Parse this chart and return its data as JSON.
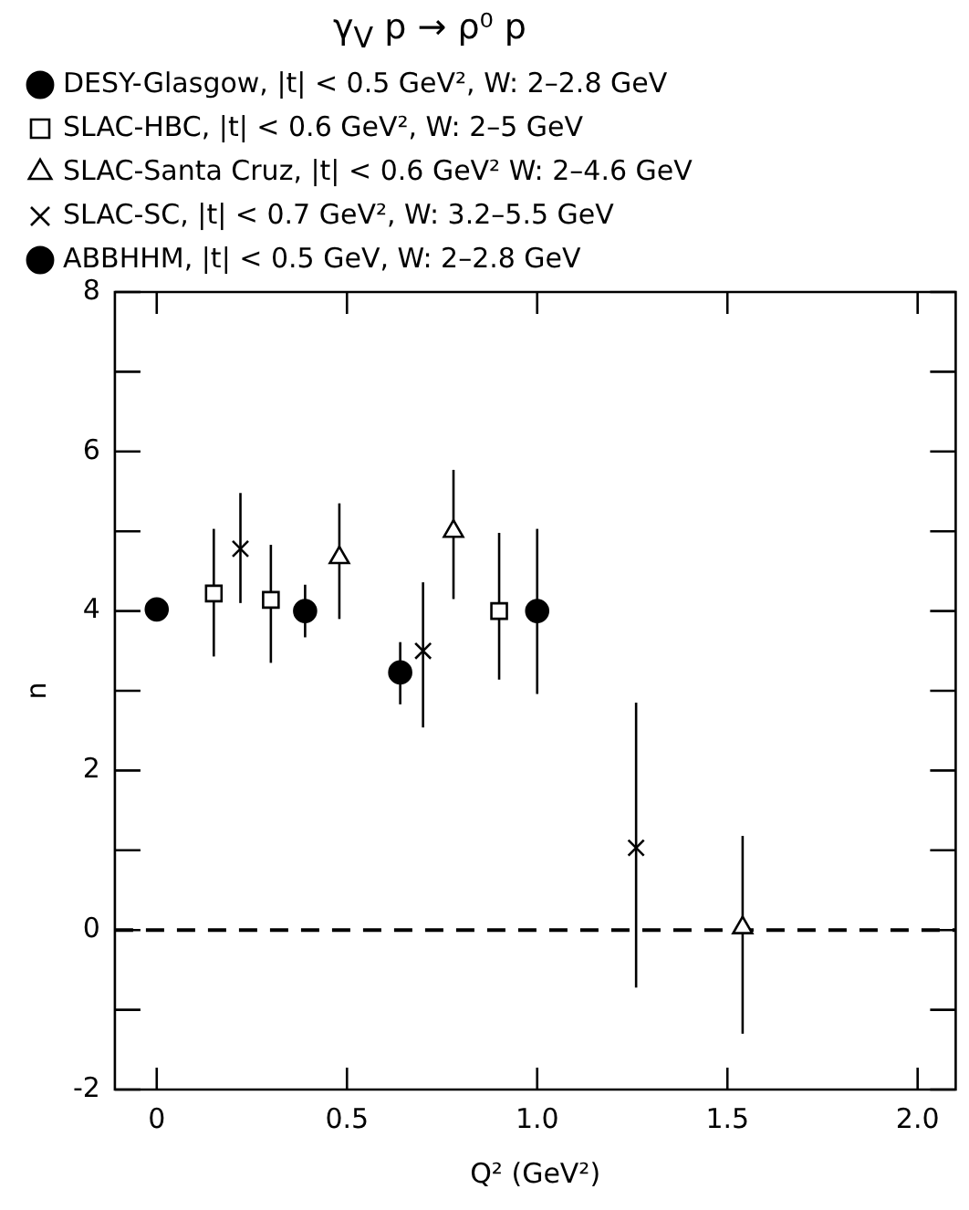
{
  "chart_data": {
    "type": "scatter",
    "title": "γ$_{V}$ p → ρ⁰ p",
    "xlabel": "Q² (GeV²)",
    "ylabel": "n",
    "xlim": [
      -0.11,
      2.1
    ],
    "xticks": [
      0,
      0.5,
      {
        "value": 1,
        "label": "1.0"
      },
      1.5,
      {
        "value": 2,
        "label": "2.0"
      }
    ],
    "ylim": [
      -2,
      8
    ],
    "yticks": [
      -2,
      {
        "value": -1,
        "label": null
      },
      0,
      {
        "value": 1,
        "label": null
      },
      2,
      {
        "value": 3,
        "label": null
      },
      4,
      {
        "value": 5,
        "label": null
      },
      6,
      {
        "value": 7,
        "label": null
      },
      8
    ],
    "grid": false,
    "legend": "top left",
    "ref_lines": [
      {
        "axis": "y",
        "value": 0,
        "line_style": "dashed",
        "color": "#000000"
      }
    ],
    "series": [
      {
        "name": "DESY-Glasgow, |t| < 0.5 GeV², W: 2–2.8 GeV",
        "color": "#000000",
        "marker": "circle",
        "x": [
          0.39,
          0.64,
          1.0
        ],
        "values": [
          4.0,
          3.23,
          4.0
        ],
        "errors": [
          [
            3.67,
            4.33
          ],
          [
            2.83,
            3.61
          ],
          [
            2.96,
            5.03
          ]
        ]
      },
      {
        "name": "SLAC-HBC, |t| < 0.6 GeV², W: 2–5 GeV",
        "color": "#000000",
        "marker": "square",
        "x": [
          0.15,
          0.3,
          0.9
        ],
        "values": [
          4.22,
          4.14,
          4.0
        ],
        "errors": [
          [
            3.43,
            5.03
          ],
          [
            3.35,
            4.83
          ],
          [
            3.14,
            4.98
          ]
        ]
      },
      {
        "name": "SLAC-Santa Cruz, |t| < 0.6 GeV² W: 2–4.6 GeV",
        "color": "#000000",
        "marker": "triangle",
        "x": [
          0.48,
          0.78,
          1.54
        ],
        "values": [
          4.67,
          5.0,
          0.03
        ],
        "errors": [
          [
            3.9,
            5.35
          ],
          [
            4.15,
            5.77
          ],
          [
            -1.3,
            1.18
          ]
        ]
      },
      {
        "name": "SLAC-SC, |t| < 0.7 GeV², W: 3.2–5.5 GeV",
        "color": "#000000",
        "marker": "cross",
        "x": [
          0.22,
          0.7,
          1.26
        ],
        "values": [
          4.78,
          3.5,
          1.03
        ],
        "errors": [
          [
            4.1,
            5.48
          ],
          [
            2.54,
            4.36
          ],
          [
            -0.72,
            2.85
          ]
        ]
      },
      {
        "name": "ABBHHM, |t| < 0.5 GeV, W: 2–2.8 GeV",
        "color": "#000000",
        "marker": "circle",
        "x": [
          0.0
        ],
        "values": [
          4.02
        ],
        "errors": [
          null
        ]
      }
    ]
  }
}
